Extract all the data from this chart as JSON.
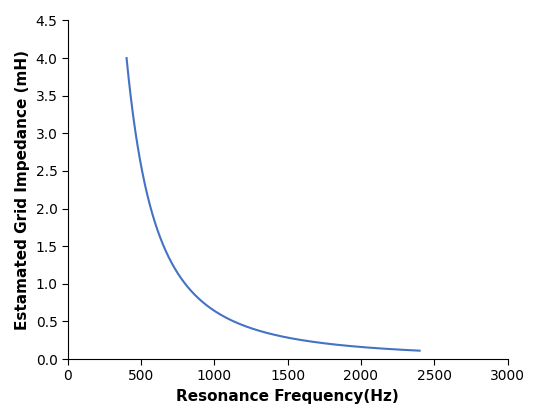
{
  "title": "",
  "xlabel": "Resonance Frequency(Hz)",
  "ylabel": "Estamated Grid Impedance (mH)",
  "xlim": [
    0,
    3000
  ],
  "ylim": [
    0,
    4.5
  ],
  "xticks": [
    0,
    500,
    1000,
    1500,
    2000,
    2500,
    3000
  ],
  "yticks": [
    0,
    0.5,
    1.0,
    1.5,
    2.0,
    2.5,
    3.0,
    3.5,
    4.0,
    4.5
  ],
  "x_start": 400,
  "x_end": 2400,
  "curve_color": "#4472C4",
  "curve_linewidth": 1.5,
  "background_color": "#ffffff",
  "k": 640000.0,
  "power": 2.0
}
